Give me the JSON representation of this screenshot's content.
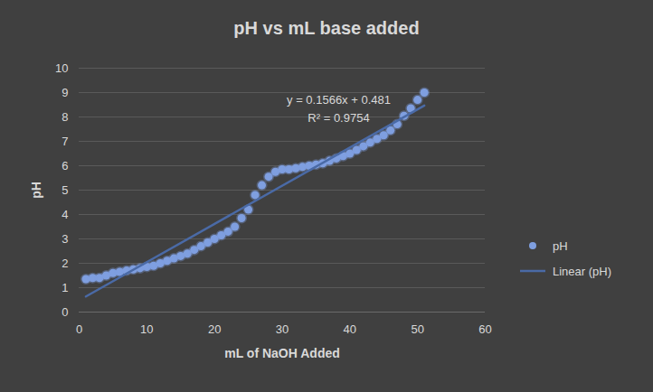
{
  "chart_data": {
    "type": "scatter",
    "title": "pH vs mL base added",
    "x_label": "mL of NaOH Added",
    "y_label": "pH",
    "x": [
      1,
      2,
      3,
      4,
      5,
      6,
      7,
      8,
      9,
      10,
      11,
      12,
      13,
      14,
      15,
      16,
      17,
      18,
      19,
      20,
      21,
      22,
      23,
      24,
      25,
      26,
      27,
      28,
      29,
      30,
      31,
      32,
      33,
      34,
      35,
      36,
      37,
      38,
      39,
      40,
      41,
      42,
      43,
      44,
      45,
      46,
      47,
      48,
      49,
      50,
      51
    ],
    "series": [
      {
        "name": "pH",
        "type": "scatter",
        "marker": "circle",
        "color": "#7f9fe0",
        "values": [
          1.35,
          1.4,
          1.4,
          1.5,
          1.6,
          1.65,
          1.7,
          1.75,
          1.8,
          1.85,
          1.9,
          2.0,
          2.1,
          2.2,
          2.3,
          2.4,
          2.55,
          2.7,
          2.85,
          3.0,
          3.15,
          3.3,
          3.5,
          3.85,
          4.2,
          4.8,
          5.2,
          5.55,
          5.75,
          5.85,
          5.85,
          5.9,
          5.95,
          6.0,
          6.05,
          6.1,
          6.2,
          6.3,
          6.4,
          6.5,
          6.65,
          6.8,
          6.95,
          7.1,
          7.25,
          7.45,
          7.7,
          8.05,
          8.35,
          8.7,
          9.0
        ]
      },
      {
        "name": "Linear (pH)",
        "type": "line",
        "line_style": "solid",
        "color": "#4a6aa6",
        "slope": 0.1566,
        "intercept": 0.481,
        "equation": "y = 0.1566x + 0.481",
        "r_squared": "R² = 0.9754"
      }
    ],
    "xlim": [
      0,
      60
    ],
    "xticks": [
      0,
      10,
      20,
      30,
      40,
      50,
      60
    ],
    "ylim": [
      0,
      10
    ],
    "yticks": [
      0,
      1,
      2,
      3,
      4,
      5,
      6,
      7,
      8,
      9,
      10
    ],
    "grid": "y",
    "legend": "right"
  }
}
